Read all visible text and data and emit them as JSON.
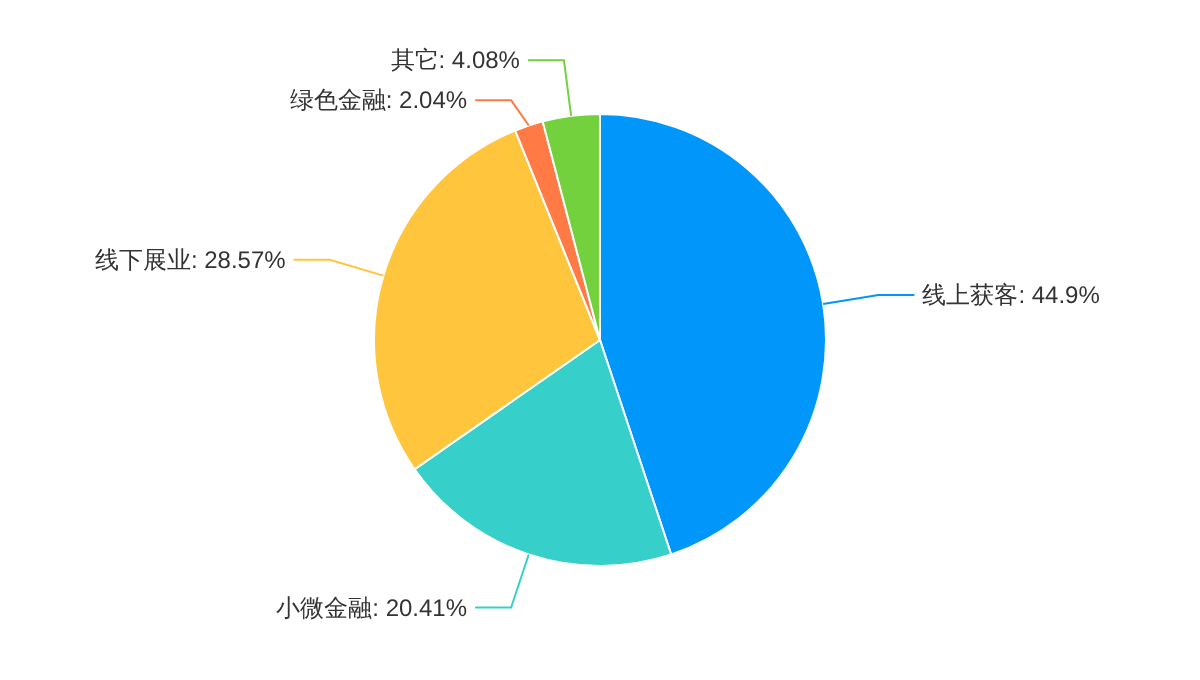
{
  "chart_data": {
    "type": "pie",
    "categories": [
      "线上获客",
      "小微金融",
      "线下展业",
      "绿色金融",
      "其它"
    ],
    "values": [
      44.9,
      20.41,
      28.57,
      2.04,
      4.08
    ],
    "value_labels": [
      "44.9%",
      "20.41%",
      "28.57%",
      "2.04%",
      "4.08%"
    ],
    "colors": [
      "#0096fa",
      "#36cfc9",
      "#ffc53d",
      "#ff7a45",
      "#73d13d"
    ]
  }
}
